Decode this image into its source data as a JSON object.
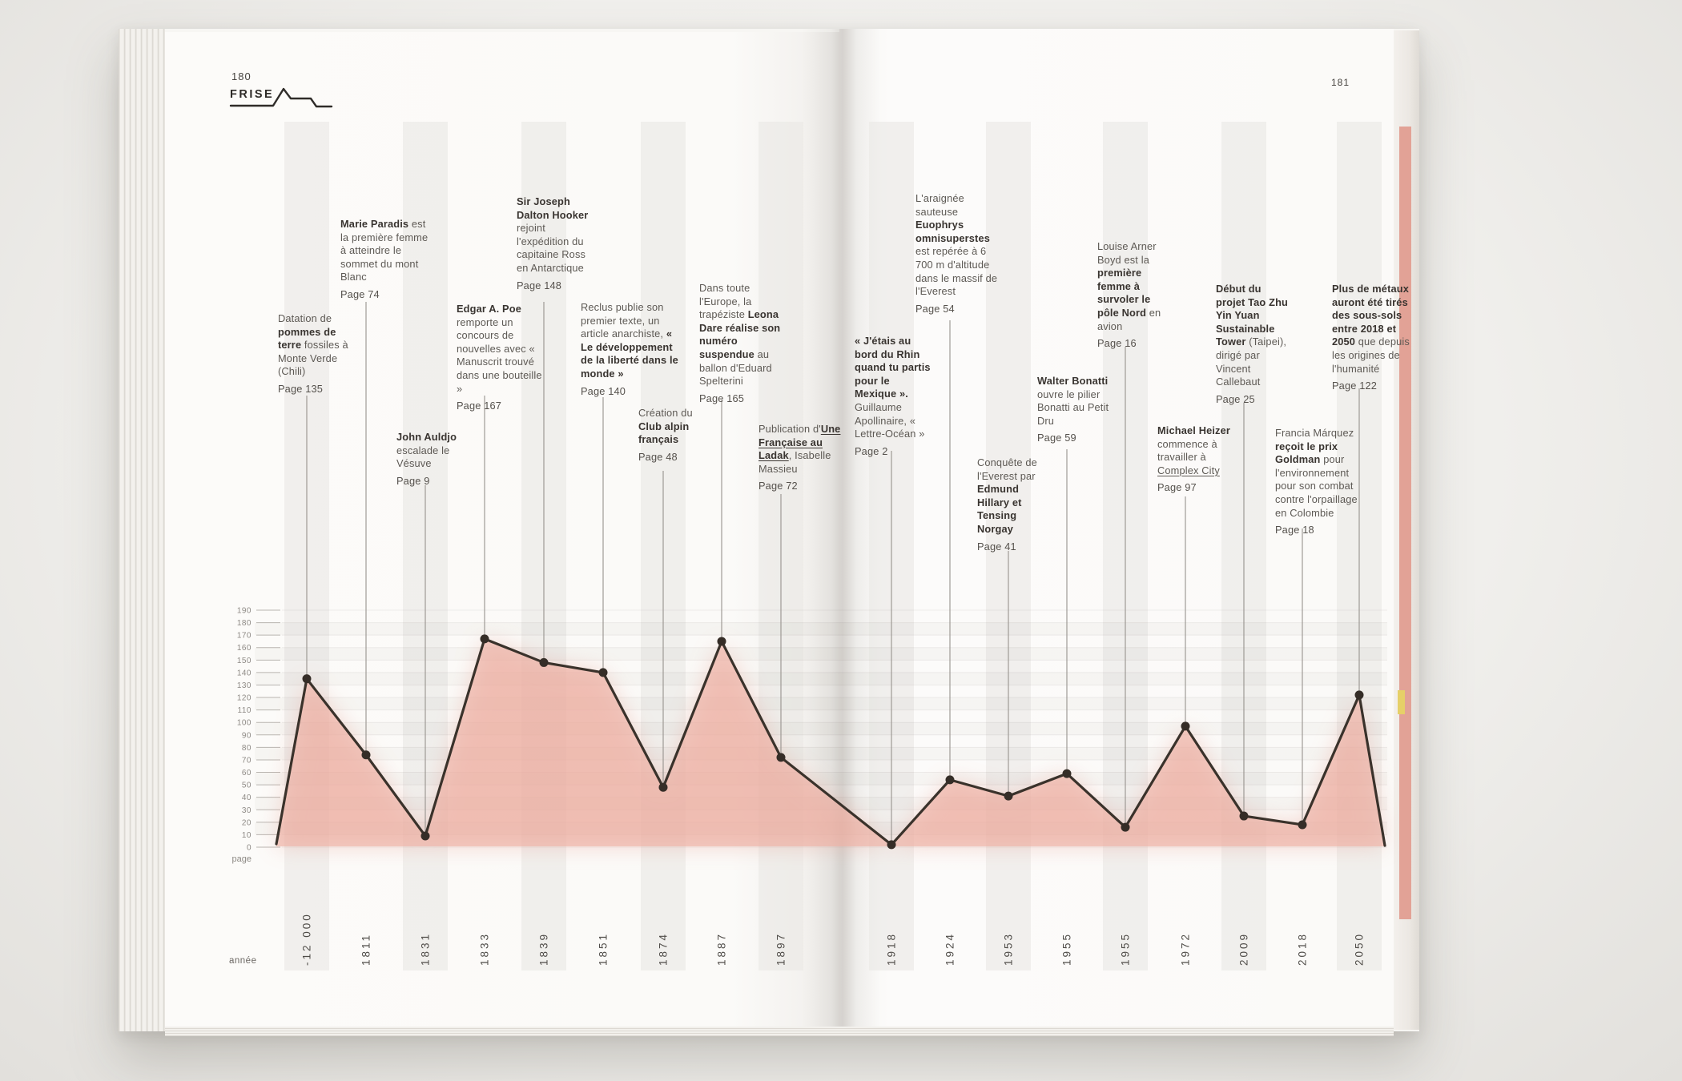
{
  "header": {
    "left_page_number": "180",
    "right_page_number": "181",
    "section_label": "FRISE"
  },
  "chart_data": {
    "type": "line",
    "title": "FRISE",
    "xlabel": "année",
    "ylabel": "page",
    "ylim": [
      0,
      190
    ],
    "y_ticks": [
      190,
      180,
      170,
      160,
      150,
      140,
      130,
      120,
      110,
      100,
      90,
      80,
      70,
      60,
      50,
      40,
      30,
      20,
      10,
      0
    ],
    "grid": true,
    "legend": false,
    "categories": [
      "-12 000",
      "1811",
      "1831",
      "1833",
      "1839",
      "1851",
      "1874",
      "1887",
      "1897",
      "1918",
      "1924",
      "1953",
      "1955",
      "1955",
      "1972",
      "2009",
      "2018",
      "2050"
    ],
    "values": [
      135,
      74,
      9,
      167,
      148,
      140,
      48,
      165,
      72,
      2,
      54,
      41,
      59,
      16,
      97,
      25,
      18,
      122
    ],
    "line_color": "#3a322b",
    "point_color": "#352d27",
    "fill_color": "#edaea1",
    "band_color": "#e9e8e5",
    "connector_color": "#97938e"
  },
  "annotations": [
    {
      "year": "-12 000",
      "page_label": "Page 135",
      "segments": [
        {
          "t": "Datation de "
        },
        {
          "t": "pommes de terre",
          "b": true
        },
        {
          "t": " fossiles à Monte Verde (Chili)"
        }
      ]
    },
    {
      "year": "1811",
      "page_label": "Page 74",
      "segments": [
        {
          "t": "Marie Paradis",
          "b": true
        },
        {
          "t": " est la première femme à atteindre le sommet du mont Blanc"
        }
      ]
    },
    {
      "year": "1831",
      "page_label": "Page 9",
      "segments": [
        {
          "t": "John Auldjo",
          "b": true
        },
        {
          "t": " escalade le Vésuve"
        }
      ]
    },
    {
      "year": "1833",
      "page_label": "Page 167",
      "segments": [
        {
          "t": "Edgar A. Poe",
          "b": true
        },
        {
          "t": " remporte un concours de nouvelles avec « Manuscrit trouvé dans une bouteille »"
        }
      ]
    },
    {
      "year": "1839",
      "page_label": "Page 148",
      "segments": [
        {
          "t": "Sir Joseph Dalton Hooker",
          "b": true
        },
        {
          "t": " rejoint l'expédition du capitaine Ross en Antarctique"
        }
      ]
    },
    {
      "year": "1851",
      "page_label": "Page 140",
      "segments": [
        {
          "t": "Reclus publie son premier texte, un article anarchiste, "
        },
        {
          "t": "« Le développement de la liberté dans le monde »",
          "b": true
        }
      ]
    },
    {
      "year": "1874",
      "page_label": "Page 48",
      "segments": [
        {
          "t": "Création du "
        },
        {
          "t": "Club alpin français",
          "b": true
        }
      ]
    },
    {
      "year": "1887",
      "page_label": "Page 165",
      "segments": [
        {
          "t": "Dans toute l'Europe, la trapéziste "
        },
        {
          "t": "Leona Dare réalise son numéro suspendue",
          "b": true
        },
        {
          "t": " au ballon d'Eduard Spelterini"
        }
      ]
    },
    {
      "year": "1897",
      "page_label": "Page 72",
      "segments": [
        {
          "t": "Publication d'"
        },
        {
          "t": "Une Française au Ladak",
          "b": true,
          "u": true
        },
        {
          "t": ", Isabelle Massieu"
        }
      ]
    },
    {
      "year": "1918",
      "page_label": "Page 2",
      "segments": [
        {
          "t": "« J'étais au bord du Rhin quand tu partis pour le Mexique ».",
          "b": true
        },
        {
          "t": " Guillaume Apollinaire, « Lettre-Océan »"
        }
      ]
    },
    {
      "year": "1924",
      "page_label": "Page 54",
      "segments": [
        {
          "t": "L'araignée sauteuse "
        },
        {
          "t": "Euophrys omnisuperstes",
          "b": true
        },
        {
          "t": " est repérée à 6 700 m d'altitude dans le massif de l'Everest"
        }
      ]
    },
    {
      "year": "1953",
      "page_label": "Page 41",
      "segments": [
        {
          "t": "Conquête de l'Everest par "
        },
        {
          "t": "Edmund Hillary et Tensing Norgay",
          "b": true
        }
      ]
    },
    {
      "year": "1955",
      "page_label": "Page 59",
      "segments": [
        {
          "t": "Walter Bonatti",
          "b": true
        },
        {
          "t": " ouvre le pilier Bonatti au Petit Dru"
        }
      ]
    },
    {
      "year": "1955",
      "page_label": "Page 16",
      "segments": [
        {
          "t": "Louise Arner Boyd est la "
        },
        {
          "t": "première femme à survoler le pôle Nord",
          "b": true
        },
        {
          "t": " en avion"
        }
      ]
    },
    {
      "year": "1972",
      "page_label": "Page 97",
      "segments": [
        {
          "t": "Michael Heizer",
          "b": true
        },
        {
          "t": " commence à travailler à "
        },
        {
          "t": "Complex City",
          "u": true
        }
      ]
    },
    {
      "year": "2009",
      "page_label": "Page 25",
      "segments": [
        {
          "t": "Début du projet Tao Zhu Yin Yuan Sustainable Tower",
          "b": true
        },
        {
          "t": " (Taipei), dirigé par Vincent Callebaut"
        }
      ]
    },
    {
      "year": "2018",
      "page_label": "Page 18",
      "segments": [
        {
          "t": "Francia Márquez "
        },
        {
          "t": "reçoit le prix Goldman",
          "b": true
        },
        {
          "t": " pour l'environnement pour son combat contre l'orpaillage en Colombie"
        }
      ]
    },
    {
      "year": "2050",
      "page_label": "Page 122",
      "segments": [
        {
          "t": "Plus de métaux auront été tirés des sous-sols entre 2018 et 2050",
          "b": true
        },
        {
          "t": " que depuis les origines de l'humanité"
        }
      ]
    }
  ]
}
